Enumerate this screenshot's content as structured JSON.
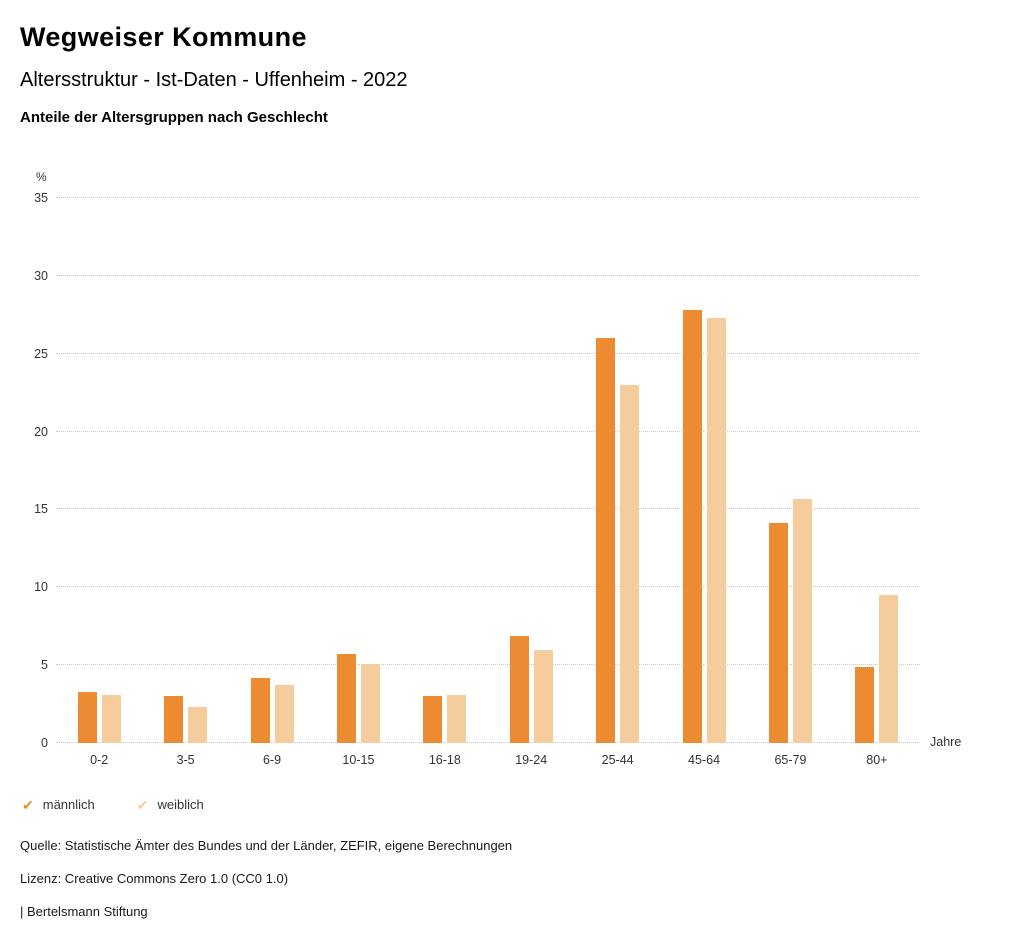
{
  "header": {
    "title": "Wegweiser Kommune",
    "subtitle": "Altersstruktur - Ist-Daten - Uffenheim - 2022",
    "section_title": "Anteile der Altersgruppen nach Geschlecht"
  },
  "chart_data": {
    "type": "bar",
    "title": "Anteile der Altersgruppen nach Geschlecht",
    "categories": [
      "0-2",
      "3-5",
      "6-9",
      "10-15",
      "16-18",
      "19-24",
      "25-44",
      "45-64",
      "65-79",
      "80+"
    ],
    "series": [
      {
        "name": "männlich",
        "color": "#ED8B33",
        "values": [
          3.3,
          3.0,
          4.2,
          5.7,
          3.0,
          6.9,
          26.0,
          27.8,
          14.1,
          4.9
        ]
      },
      {
        "name": "weiblich",
        "color": "#F5CC9B",
        "values": [
          3.1,
          2.3,
          3.7,
          5.1,
          3.1,
          6.0,
          23.0,
          27.3,
          15.7,
          9.5
        ]
      }
    ],
    "ylabel_unit": "%",
    "xlabel_unit": "Jahre",
    "ylim": [
      0,
      35
    ],
    "yticks": [
      0,
      5,
      10,
      15,
      20,
      25,
      30,
      35
    ],
    "grid": "dotted horizontal",
    "legend_position": "bottom-left"
  },
  "legend": {
    "items": [
      {
        "label": "männlich",
        "color": "#ED8B33",
        "icon": "check-icon"
      },
      {
        "label": "weiblich",
        "color": "#F5CC9B",
        "icon": "check-icon"
      }
    ]
  },
  "footer": {
    "source": "Quelle: Statistische Ämter des Bundes und der Länder, ZEFIR, eigene Berechnungen",
    "license": "Lizenz: Creative Commons Zero 1.0 (CC0 1.0)",
    "attribution": "| Bertelsmann Stiftung"
  }
}
